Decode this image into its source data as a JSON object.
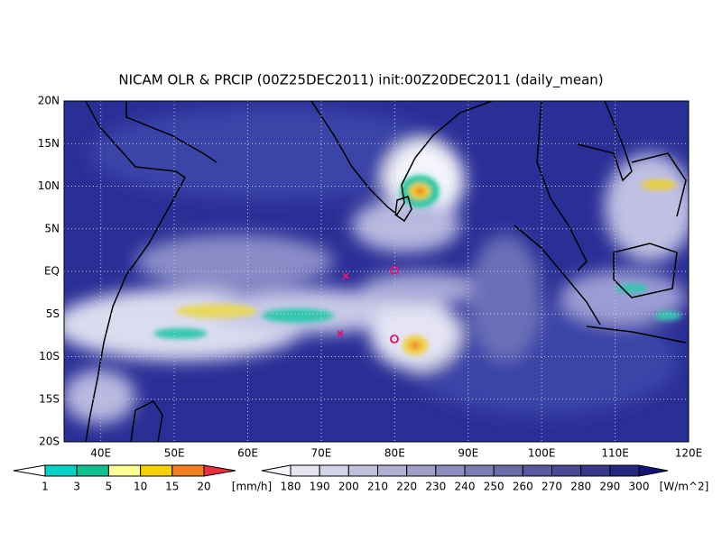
{
  "title": "NICAM OLR & PRCIP (00Z25DEC2011) init:00Z20DEC2011 (daily_mean)",
  "map": {
    "lat_labels": [
      "20N",
      "15N",
      "10N",
      "5N",
      "EQ",
      "5S",
      "10S",
      "15S",
      "20S"
    ],
    "lon_labels": [
      "40E",
      "50E",
      "60E",
      "70E",
      "80E",
      "90E",
      "100E",
      "110E",
      "120E"
    ]
  },
  "legend_precip": {
    "labels": [
      1,
      3,
      5,
      10,
      15,
      20
    ],
    "unit": "[mm/h]"
  },
  "legend_olr": {
    "labels": [
      180,
      190,
      200,
      210,
      220,
      230,
      240,
      250,
      260,
      270,
      280,
      290,
      300
    ],
    "unit": "[W/m^2]"
  }
}
